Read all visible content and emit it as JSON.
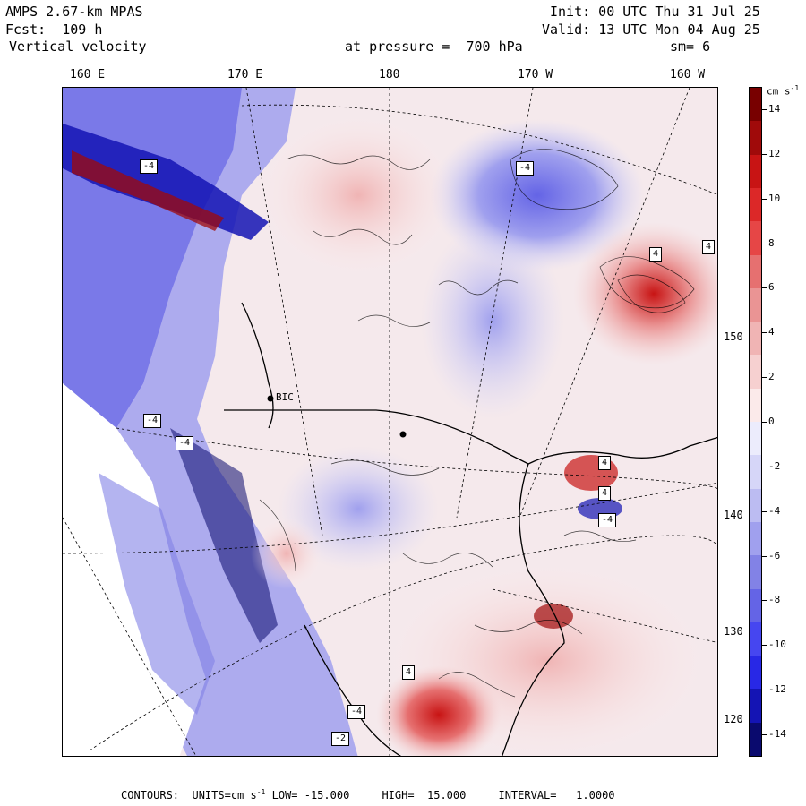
{
  "header": {
    "model": "AMPS 2.67-km MPAS",
    "forecast": "Fcst:  109 h",
    "field": "Vertical velocity",
    "init": "Init: 00 UTC Thu 31 Jul 25",
    "valid": "Valid: 13 UTC Mon 04 Aug 25",
    "pressure": "at pressure =  700 hPa",
    "smoothing": "sm= 6"
  },
  "longitude_labels": [
    "160 E",
    "170 E",
    "180",
    "170 W",
    "160 W"
  ],
  "latitude_labels": [
    "150 W",
    "140 W",
    "130 W",
    "120 W"
  ],
  "colorbar": {
    "unit": "cm s",
    "unit_exp": "-1",
    "ticks": [
      "14",
      "12",
      "10",
      "8",
      "6",
      "4",
      "2",
      "0",
      "-2",
      "-4",
      "-6",
      "-8",
      "-10",
      "-12",
      "-14"
    ],
    "colors": [
      "#0a0a6e",
      "#1414b4",
      "#2828e6",
      "#4646f0",
      "#6464e6",
      "#8282e6",
      "#a0a0ee",
      "#bcbcf2",
      "#d6d6f8",
      "#ececfc",
      "#fbeaea",
      "#f6d0d0",
      "#f0b4b4",
      "#ea9494",
      "#e67070",
      "#e64646",
      "#dc2828",
      "#c81414",
      "#a00a0a",
      "#780000"
    ]
  },
  "map_labels": {
    "contour_values": [
      "4",
      "4",
      "-4",
      "-4",
      "-4",
      "-4",
      "-4",
      "-2",
      "4",
      "4",
      "4",
      "-4"
    ],
    "station": "BIC"
  },
  "footer": {
    "contours": "CONTOURS:",
    "units_prefix": "UNITS=cm s",
    "units_exp": "-1",
    "low": "LOW= -15.000",
    "high": "HIGH=  15.000",
    "interval": "INTERVAL=   1.0000"
  }
}
